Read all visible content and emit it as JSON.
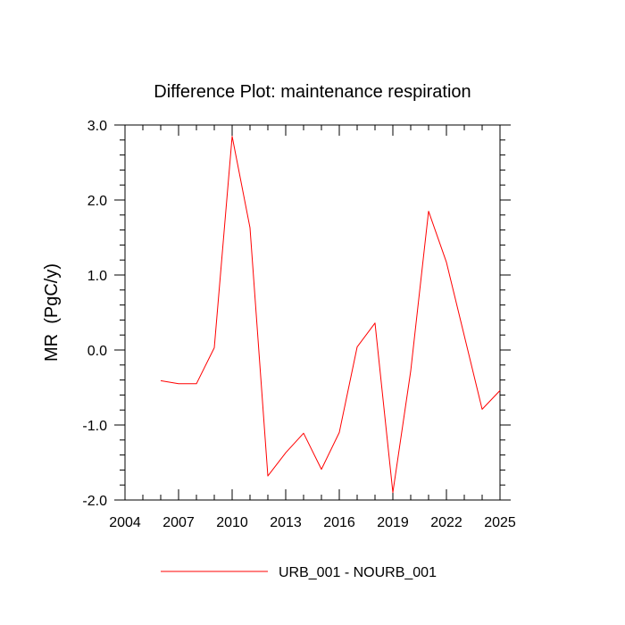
{
  "chart_data": {
    "type": "line",
    "title": "Difference Plot: maintenance respiration",
    "ylabel": "MR  (PgC/y)",
    "xlabel": "",
    "xlim": [
      2004,
      2025
    ],
    "ylim": [
      -2.0,
      3.0
    ],
    "x_ticks": [
      2004,
      2007,
      2010,
      2013,
      2016,
      2019,
      2022,
      2025
    ],
    "x_tick_labels": [
      "2004",
      "2007",
      "2010",
      "2013",
      "2016",
      "2019",
      "2022",
      "2025"
    ],
    "y_ticks": [
      -2.0,
      -1.0,
      0.0,
      1.0,
      2.0,
      3.0
    ],
    "y_tick_labels": [
      "-2.0",
      "-1.0",
      "0.0",
      "1.0",
      "2.0",
      "3.0"
    ],
    "grid": false,
    "legend_position": "bottom",
    "series": [
      {
        "name": "URB_001 - NOURB_001",
        "color": "#ff0000",
        "x": [
          2006,
          2007,
          2008,
          2009,
          2010,
          2011,
          2012,
          2013,
          2014,
          2015,
          2016,
          2017,
          2018,
          2019,
          2020,
          2021,
          2022,
          2023,
          2024,
          2025
        ],
        "values": [
          -0.41,
          -0.45,
          -0.45,
          0.03,
          2.85,
          1.63,
          -1.68,
          -1.37,
          -1.11,
          -1.59,
          -1.1,
          0.04,
          0.36,
          -1.9,
          -0.28,
          1.85,
          1.17,
          0.19,
          -0.79,
          -0.54
        ]
      }
    ]
  }
}
